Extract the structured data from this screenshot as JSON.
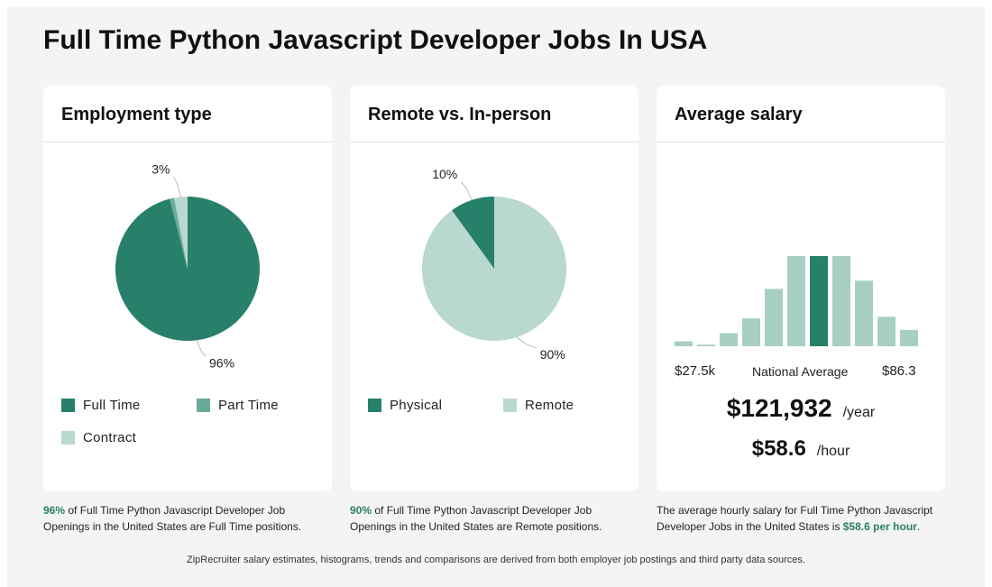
{
  "page": {
    "title": "Full Time Python Javascript Developer Jobs In USA",
    "footer": "ZipRecruiter salary estimates, histograms, trends and comparisons are derived from both employer job postings and third party data sources."
  },
  "colors": {
    "dark_green": "#28806a",
    "mid_green": "#6aaa9a",
    "light_green": "#b9d8cf",
    "hist_bar": "#a8cfc3"
  },
  "employment": {
    "title": "Employment type",
    "caption_highlight": "96%",
    "caption_text": " of Full Time Python Javascript Developer Job Openings in the United States are Full Time positions.",
    "legend": [
      {
        "label": "Full Time",
        "color": "#28806a"
      },
      {
        "label": "Part Time",
        "color": "#6aaa9a"
      },
      {
        "label": "Contract",
        "color": "#b9d8cf"
      }
    ]
  },
  "remote": {
    "title": "Remote vs. In-person",
    "caption_highlight": "90%",
    "caption_text": " of Full Time Python Javascript Developer Job Openings in the United States are Remote positions.",
    "legend": [
      {
        "label": "Physical",
        "color": "#28806a"
      },
      {
        "label": "Remote",
        "color": "#b9d8cf"
      }
    ]
  },
  "salary": {
    "title": "Average salary",
    "min_label": "$27.5k",
    "avg_label": "National Average",
    "max_label": "$86.3",
    "yearly": "$121,932",
    "yearly_unit": "/year",
    "hourly": "$58.6",
    "hourly_unit": "/hour",
    "caption_text": "The average hourly salary for Full Time Python Javascript Developer Jobs in the United States is ",
    "caption_highlight": "$58.6 per hour",
    "caption_end": "."
  },
  "chart_data": [
    {
      "type": "pie",
      "title": "Employment type",
      "slices": [
        {
          "name": "Full Time",
          "value": 96,
          "label": "96%",
          "color": "#28806a"
        },
        {
          "name": "Part Time",
          "value": 1,
          "label": "",
          "color": "#6aaa9a"
        },
        {
          "name": "Contract",
          "value": 3,
          "label": "3%",
          "color": "#b9d8cf"
        }
      ]
    },
    {
      "type": "pie",
      "title": "Remote vs. In-person",
      "slices": [
        {
          "name": "Physical",
          "value": 10,
          "label": "10%",
          "color": "#28806a"
        },
        {
          "name": "Remote",
          "value": 90,
          "label": "90%",
          "color": "#b9d8cf"
        }
      ]
    },
    {
      "type": "bar",
      "title": "Average salary",
      "values": [
        3,
        1,
        8,
        17,
        35,
        55,
        55,
        55,
        40,
        18,
        10
      ],
      "highlight_index": 6,
      "xlabel_min": "$27.5k",
      "xlabel_max": "$86.3"
    }
  ]
}
